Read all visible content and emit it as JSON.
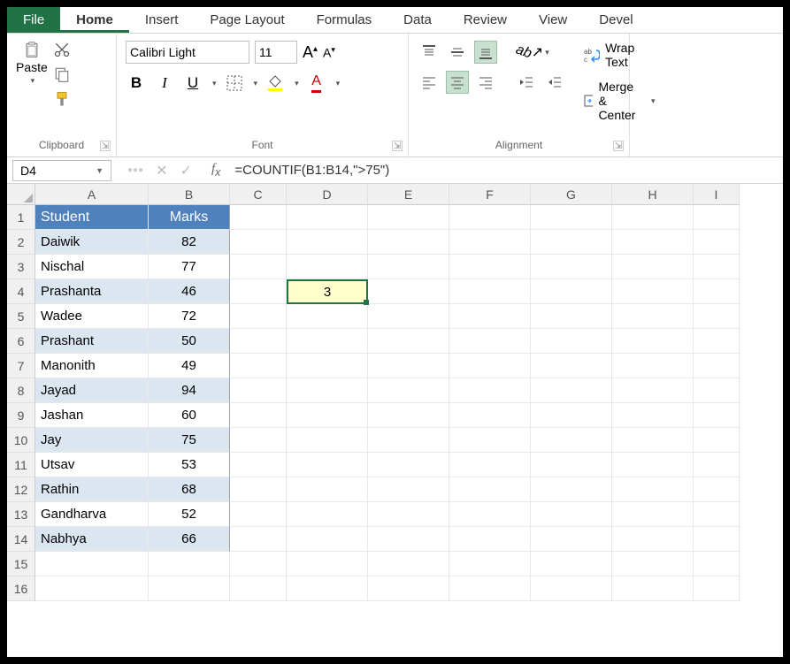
{
  "menu": {
    "file": "File",
    "home": "Home",
    "insert": "Insert",
    "page_layout": "Page Layout",
    "formulas": "Formulas",
    "data": "Data",
    "review": "Review",
    "view": "View",
    "developer": "Devel"
  },
  "ribbon": {
    "clipboard": {
      "label": "Clipboard",
      "paste": "Paste"
    },
    "font": {
      "label": "Font",
      "name": "Calibri Light",
      "size": "11",
      "increase": "A",
      "decrease": "A"
    },
    "alignment": {
      "label": "Alignment"
    },
    "wrap": {
      "wrap": "Wrap Text",
      "merge": "Merge & Center"
    }
  },
  "namebox": "D4",
  "formula": "=COUNTIF(B1:B14,\">75\")",
  "columns": [
    "A",
    "B",
    "C",
    "D",
    "E",
    "F",
    "G",
    "H",
    "I"
  ],
  "column_widths": {
    "A": 128,
    "B": 92,
    "C": 64,
    "D": 92,
    "E": 92,
    "F": 92,
    "G": 92,
    "H": 92,
    "I": 52
  },
  "rows": [
    "1",
    "2",
    "3",
    "4",
    "5",
    "6",
    "7",
    "8",
    "9",
    "10",
    "11",
    "12",
    "13",
    "14",
    "15",
    "16"
  ],
  "table": {
    "header_bg": "#4f81bd",
    "header_fg": "#ffffff",
    "alt_bg": "#dce6f1",
    "headers": {
      "A": "Student",
      "B": "Marks"
    },
    "data": [
      {
        "A": "Daiwik",
        "B": "82"
      },
      {
        "A": "Nischal",
        "B": "77"
      },
      {
        "A": "Prashanta",
        "B": "46"
      },
      {
        "A": "Wadee",
        "B": "72"
      },
      {
        "A": "Prashant",
        "B": "50"
      },
      {
        "A": "Manonith",
        "B": "49"
      },
      {
        "A": "Jayad",
        "B": "94"
      },
      {
        "A": "Jashan",
        "B": "60"
      },
      {
        "A": "Jay",
        "B": "75"
      },
      {
        "A": "Utsav",
        "B": "53"
      },
      {
        "A": "Rathin",
        "B": "68"
      },
      {
        "A": "Gandharva",
        "B": "52"
      },
      {
        "A": "Nabhya",
        "B": "66"
      }
    ]
  },
  "selected_cell": {
    "ref": "D4",
    "value": "3",
    "bg": "#ffffcc",
    "border": "#217346"
  },
  "colors": {
    "excel_green": "#217346",
    "grid_line": "#e8e8e8",
    "header_bg": "#f0f0f0"
  }
}
